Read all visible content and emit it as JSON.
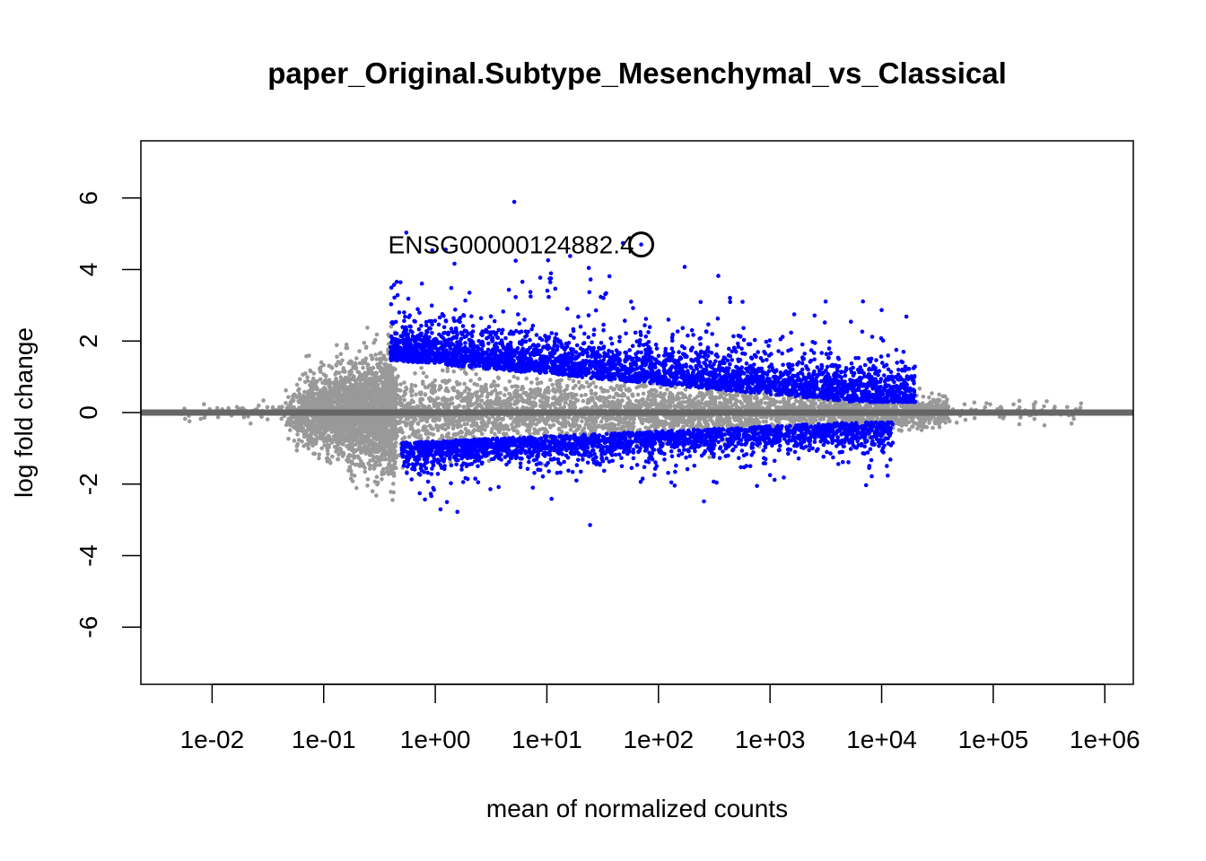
{
  "chart_data": {
    "type": "scatter",
    "title": "paper_Original.Subtype_Mesenchymal_vs_Classical",
    "xlabel": "mean of normalized counts",
    "ylabel": "log fold change",
    "x_scale": "log10",
    "xlim": [
      0.0023,
      1800000.0
    ],
    "ylim": [
      -7.6,
      7.6
    ],
    "x_ticks": [
      {
        "value": 0.01,
        "label": "1e-02"
      },
      {
        "value": 0.1,
        "label": "1e-01"
      },
      {
        "value": 1,
        "label": "1e+00"
      },
      {
        "value": 10,
        "label": "1e+01"
      },
      {
        "value": 100,
        "label": "1e+02"
      },
      {
        "value": 1000,
        "label": "1e+03"
      },
      {
        "value": 10000,
        "label": "1e+04"
      },
      {
        "value": 100000,
        "label": "1e+05"
      },
      {
        "value": 1000000,
        "label": "1e+06"
      }
    ],
    "y_ticks": [
      {
        "value": -6,
        "label": "-6"
      },
      {
        "value": -4,
        "label": "-4"
      },
      {
        "value": -2,
        "label": "-2"
      },
      {
        "value": 0,
        "label": "0"
      },
      {
        "value": 2,
        "label": "2"
      },
      {
        "value": 4,
        "label": "4"
      },
      {
        "value": 6,
        "label": "6"
      }
    ],
    "grid": false,
    "legend": "none",
    "reference_line": {
      "y": 0,
      "color": "#666666"
    },
    "series": [
      {
        "key": "not_significant",
        "color": "#999999"
      },
      {
        "key": "significant",
        "color": "#0000FF"
      }
    ],
    "highlight": {
      "label": "ENSG00000124882.4",
      "x": 70,
      "y": 4.7
    }
  }
}
